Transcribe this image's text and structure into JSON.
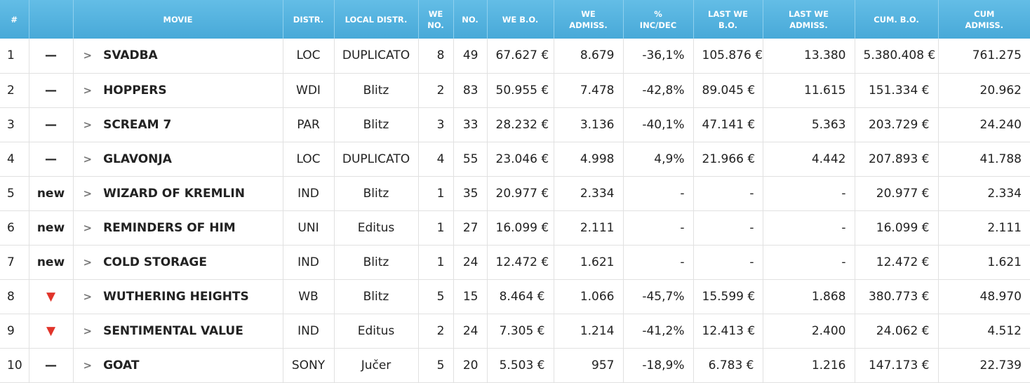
{
  "headers": [
    [
      "#"
    ],
    [
      ""
    ],
    [
      "MOVIE"
    ],
    [
      "DISTR."
    ],
    [
      "LOCAL DISTR."
    ],
    [
      "WE",
      "NO."
    ],
    [
      "NO."
    ],
    [
      "WE B.O."
    ],
    [
      "WE",
      "ADMISS."
    ],
    [
      "%",
      "INC/DEC"
    ],
    [
      "LAST WE",
      "B.O."
    ],
    [
      "LAST WE",
      "ADMISS."
    ],
    [
      "CUM. B.O."
    ],
    [
      "CUM",
      "ADMISS."
    ]
  ],
  "colors": {
    "header": "#52b1de",
    "down": "#e1342a"
  },
  "rows": [
    {
      "rank": "1",
      "change": "—",
      "change_type": "same",
      "title": "SVADBA",
      "distr": "LOC",
      "local": "DUPLICATO",
      "we_no": "8",
      "no": "49",
      "we_bo": "67.627 €",
      "we_adm": "8.679",
      "pct": "-36,1%",
      "last_bo": "105.876 €",
      "last_adm": "13.380",
      "cum_bo": "5.380.408 €",
      "cum_adm": "761.275"
    },
    {
      "rank": "2",
      "change": "—",
      "change_type": "same",
      "title": "HOPPERS",
      "distr": "WDI",
      "local": "Blitz",
      "we_no": "2",
      "no": "83",
      "we_bo": "50.955 €",
      "we_adm": "7.478",
      "pct": "-42,8%",
      "last_bo": "89.045 €",
      "last_adm": "11.615",
      "cum_bo": "151.334 €",
      "cum_adm": "20.962"
    },
    {
      "rank": "3",
      "change": "—",
      "change_type": "same",
      "title": "SCREAM 7",
      "distr": "PAR",
      "local": "Blitz",
      "we_no": "3",
      "no": "33",
      "we_bo": "28.232 €",
      "we_adm": "3.136",
      "pct": "-40,1%",
      "last_bo": "47.141 €",
      "last_adm": "5.363",
      "cum_bo": "203.729 €",
      "cum_adm": "24.240"
    },
    {
      "rank": "4",
      "change": "—",
      "change_type": "same",
      "title": "GLAVONJA",
      "distr": "LOC",
      "local": "DUPLICATO",
      "we_no": "4",
      "no": "55",
      "we_bo": "23.046 €",
      "we_adm": "4.998",
      "pct": "4,9%",
      "last_bo": "21.966 €",
      "last_adm": "4.442",
      "cum_bo": "207.893 €",
      "cum_adm": "41.788"
    },
    {
      "rank": "5",
      "change": "new",
      "change_type": "new",
      "title": "WIZARD OF KREMLIN",
      "distr": "IND",
      "local": "Blitz",
      "we_no": "1",
      "no": "35",
      "we_bo": "20.977 €",
      "we_adm": "2.334",
      "pct": "-",
      "last_bo": "-",
      "last_adm": "-",
      "cum_bo": "20.977 €",
      "cum_adm": "2.334"
    },
    {
      "rank": "6",
      "change": "new",
      "change_type": "new",
      "title": "REMINDERS OF HIM",
      "distr": "UNI",
      "local": "Editus",
      "we_no": "1",
      "no": "27",
      "we_bo": "16.099 €",
      "we_adm": "2.111",
      "pct": "-",
      "last_bo": "-",
      "last_adm": "-",
      "cum_bo": "16.099 €",
      "cum_adm": "2.111"
    },
    {
      "rank": "7",
      "change": "new",
      "change_type": "new",
      "title": "COLD STORAGE",
      "distr": "IND",
      "local": "Blitz",
      "we_no": "1",
      "no": "24",
      "we_bo": "12.472 €",
      "we_adm": "1.621",
      "pct": "-",
      "last_bo": "-",
      "last_adm": "-",
      "cum_bo": "12.472 €",
      "cum_adm": "1.621"
    },
    {
      "rank": "8",
      "change": "▼",
      "change_type": "down",
      "title": "WUTHERING HEIGHTS",
      "distr": "WB",
      "local": "Blitz",
      "we_no": "5",
      "no": "15",
      "we_bo": "8.464 €",
      "we_adm": "1.066",
      "pct": "-45,7%",
      "last_bo": "15.599 €",
      "last_adm": "1.868",
      "cum_bo": "380.773 €",
      "cum_adm": "48.970"
    },
    {
      "rank": "9",
      "change": "▼",
      "change_type": "down",
      "title": "SENTIMENTAL VALUE",
      "distr": "IND",
      "local": "Editus",
      "we_no": "2",
      "no": "24",
      "we_bo": "7.305 €",
      "we_adm": "1.214",
      "pct": "-41,2%",
      "last_bo": "12.413 €",
      "last_adm": "2.400",
      "cum_bo": "24.062 €",
      "cum_adm": "4.512"
    },
    {
      "rank": "10",
      "change": "—",
      "change_type": "same",
      "title": "GOAT",
      "distr": "SONY",
      "local": "Jučer",
      "we_no": "5",
      "no": "20",
      "we_bo": "5.503 €",
      "we_adm": "957",
      "pct": "-18,9%",
      "last_bo": "6.783 €",
      "last_adm": "1.216",
      "cum_bo": "147.173 €",
      "cum_adm": "22.739"
    }
  ]
}
